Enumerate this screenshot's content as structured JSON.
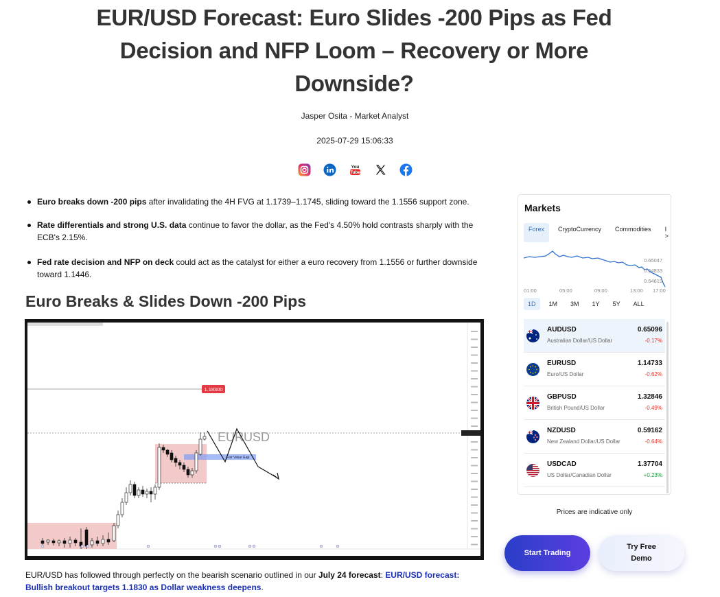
{
  "article": {
    "title": "EUR/USD Forecast: Euro Slides -200 Pips as Fed Decision and NFP Loom – Recovery or More Downside?",
    "author": "Jasper Osita - Market Analyst",
    "date": "2025-07-29 15:06:33",
    "socials": [
      "instagram-icon",
      "linkedin-icon",
      "youtube-icon",
      "x-icon",
      "facebook-icon"
    ],
    "bullets": [
      {
        "bold": "Euro breaks down -200 pips",
        "text": " after invalidating the 4H FVG at 1.1739–1.1745, sliding toward the 1.1556 support zone."
      },
      {
        "bold": "Rate differentials and strong U.S. data",
        "text": " continue to favor the dollar, as the Fed's 4.50% hold contrasts sharply with the ECB's 2.15%."
      },
      {
        "bold": "Fed rate decision and NFP on deck",
        "text": " could act as the catalyst for either a euro recovery from 1.1556 or further downside toward 1.1446."
      }
    ],
    "section_heading": "Euro Breaks & Slides Down -200 Pips",
    "footer": {
      "text1": "EUR/USD has followed through perfectly on the bearish scenario outlined in our ",
      "bold": "July 24 forecast",
      "text2": ": ",
      "link": "EUR/USD forecast: Bullish breakout targets 1.1830 as Dollar weakness deepens",
      "text3": "."
    }
  },
  "chart": {
    "symbol_watermark": "EURUSD",
    "level_label": "1.18300",
    "fvg_label": "Fair Value Gap",
    "price_color": "#e53945"
  },
  "markets": {
    "title": "Markets",
    "tabs": [
      "Forex",
      "CryptoCurrency",
      "Commodities",
      "I >"
    ],
    "active_tab": "Forex",
    "mini_chart": {
      "price_labels": [
        "0.65047",
        "0.64833",
        "0.64619"
      ],
      "time_labels": [
        "01:00",
        "05:00",
        "09:00",
        "13:00",
        "17:00"
      ]
    },
    "ranges": [
      "1D",
      "1M",
      "3M",
      "1Y",
      "5Y",
      "ALL"
    ],
    "active_range": "1D",
    "pairs": [
      {
        "symbol": "AUDUSD",
        "name": "Australian Dollar/US Dollar",
        "price": "0.65096",
        "change": "-0.17%",
        "dir": "neg",
        "flag": "au"
      },
      {
        "symbol": "EURUSD",
        "name": "Euro/US Dollar",
        "price": "1.14733",
        "change": "-0.62%",
        "dir": "neg",
        "flag": "eu"
      },
      {
        "symbol": "GBPUSD",
        "name": "British Pound/US Dollar",
        "price": "1.32846",
        "change": "-0.49%",
        "dir": "neg",
        "flag": "gb"
      },
      {
        "symbol": "NZDUSD",
        "name": "New Zealand Dollar/US Dollar",
        "price": "0.59162",
        "change": "-0.64%",
        "dir": "neg",
        "flag": "nz"
      },
      {
        "symbol": "USDCAD",
        "name": "US Dollar/Canadian Dollar",
        "price": "1.37704",
        "change": "+0.23%",
        "dir": "pos",
        "flag": "us"
      }
    ]
  },
  "disclaimer": "Prices are indicative only",
  "cta": {
    "start": "Start Trading",
    "demo_line1": "Try Free",
    "demo_line2": "Demo"
  },
  "colors": {
    "accent": "#2e6fcf",
    "negative": "#e0352b",
    "positive": "#1f9d3e",
    "link": "#1a2fb8"
  }
}
